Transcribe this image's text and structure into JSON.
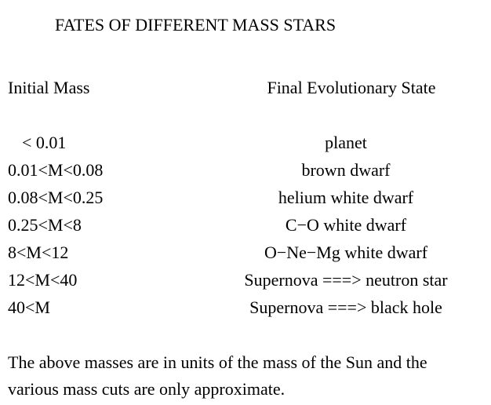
{
  "title": "FATES OF DIFFERENT MASS STARS",
  "table": {
    "headers": [
      "Initial Mass",
      "Final Evolutionary State"
    ],
    "rows": [
      [
        "< 0.01",
        "planet"
      ],
      [
        "0.01<M<0.08",
        "brown dwarf"
      ],
      [
        "0.08<M<0.25",
        "helium white dwarf"
      ],
      [
        "0.25<M<8",
        "C−O white dwarf"
      ],
      [
        "8<M<12",
        "O−Ne−Mg white dwarf"
      ],
      [
        "12<M<40",
        "Supernova ===> neutron star"
      ],
      [
        "40<M",
        "Supernova ===> black hole"
      ]
    ]
  },
  "note": [
    "The above masses are in units of the mass of the Sun and the",
    "various mass cuts are only approximate."
  ]
}
